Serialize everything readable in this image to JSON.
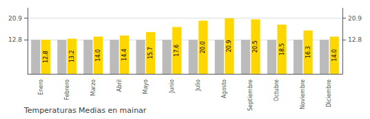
{
  "chart_data": {
    "type": "bar",
    "title": "Temperaturas Medias en mainar",
    "categories": [
      "Enero",
      "Febrero",
      "Marzo",
      "Abril",
      "Mayo",
      "Junio",
      "Julio",
      "Agosto",
      "Septiembre",
      "Octubre",
      "Noviembre",
      "Diciembre"
    ],
    "series": [
      {
        "color": "#BBBBBB",
        "values": [
          12.8,
          12.8,
          12.8,
          12.8,
          12.8,
          12.8,
          12.8,
          12.8,
          12.8,
          12.8,
          12.8,
          12.8
        ]
      },
      {
        "color": "#FFD700",
        "values": [
          12.8,
          13.2,
          14.0,
          14.4,
          15.7,
          17.6,
          20.0,
          20.9,
          20.5,
          18.5,
          16.3,
          14.0
        ],
        "data_labels": true,
        "value_labels": [
          "12.8",
          "13.2",
          "14.0",
          "14.4",
          "15.7",
          "17.6",
          "20.0",
          "20.9",
          "20.5",
          "18.5",
          "16.3",
          "14.0"
        ]
      }
    ],
    "ylim": [
      0,
      24.662
    ],
    "yticks": [
      12.8,
      20.9
    ],
    "y2lim": [
      0,
      24.662
    ],
    "y2ticks": [
      12.8,
      20.9
    ],
    "grid": true
  }
}
